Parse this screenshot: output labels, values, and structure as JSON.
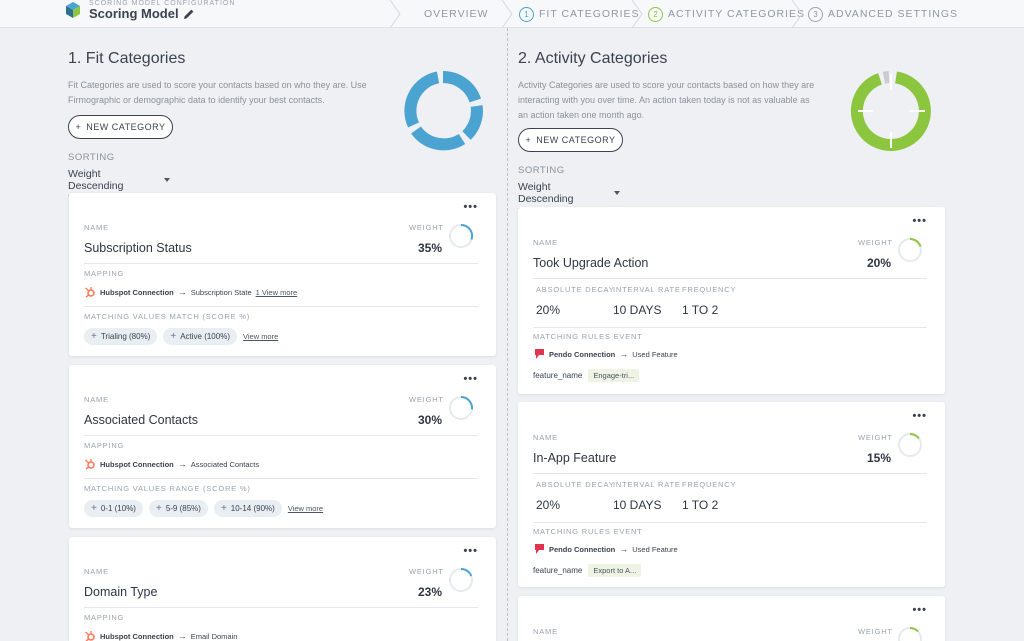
{
  "header": {
    "config_label": "SCORING MODEL CONFIGURATION",
    "model_title": "Scoring Model",
    "steps": [
      {
        "label": "OVERVIEW",
        "num": ""
      },
      {
        "label": "FIT CATEGORIES",
        "num": "1"
      },
      {
        "label": "ACTIVITY CATEGORIES",
        "num": "2"
      },
      {
        "label": "ADVANCED SETTINGS",
        "num": "3"
      }
    ]
  },
  "colors": {
    "fit_accent": "#4aa3d1",
    "activity_accent": "#8cc63f",
    "hubspot": "#ff7a59",
    "pendo": "#e0344f"
  },
  "fit": {
    "title": "1. Fit Categories",
    "description": "Fit Categories are used to score your contacts based on who they are. Use Firmographic or demographic data to identify your best contacts.",
    "new_button": "NEW CATEGORY",
    "sorting_label": "SORTING",
    "sorting_value": "Weight Descending",
    "cards": [
      {
        "name_label": "NAME",
        "name": "Subscription Status",
        "weight_label": "WEIGHT",
        "weight": "35%",
        "weight_value": 0.35,
        "mapping_label": "MAPPING",
        "connection": "Hubspot Connection",
        "field": "Subscription State",
        "view_more_mapping": "1 View more",
        "match_label": "MATCHING VALUES MATCH (SCORE %)",
        "chips": [
          "Trialing (80%)",
          "Active (100%)"
        ],
        "view_more": "View more"
      },
      {
        "name_label": "NAME",
        "name": "Associated Contacts",
        "weight_label": "WEIGHT",
        "weight": "30%",
        "weight_value": 0.3,
        "mapping_label": "MAPPING",
        "connection": "Hubspot Connection",
        "field": "Associated Contacts",
        "match_label": "MATCHING VALUES RANGE (SCORE %)",
        "chips": [
          "0-1 (10%)",
          "5-9 (85%)",
          "10-14 (90%)"
        ],
        "view_more": "View more"
      },
      {
        "name_label": "NAME",
        "name": "Domain Type",
        "weight_label": "WEIGHT",
        "weight": "23%",
        "weight_value": 0.23,
        "mapping_label": "MAPPING",
        "connection": "Hubspot Connection",
        "field": "Email Domain"
      }
    ]
  },
  "activity": {
    "title": "2. Activity Categories",
    "description": "Activity Categories are used to score your contacts based on how they are interacting with you over time. An action taken today is not as valuable as an action taken one month ago.",
    "new_button": "NEW CATEGORY",
    "sorting_label": "SORTING",
    "sorting_value": "Weight Descending",
    "cards": [
      {
        "name_label": "NAME",
        "name": "Took Upgrade Action",
        "weight_label": "WEIGHT",
        "weight": "20%",
        "weight_value": 0.2,
        "decay_label": "ABSOLUTE DECAY",
        "decay": "20%",
        "interval_label": "INTERVAL RATE",
        "interval": "10 DAYS",
        "freq_label": "FREQUENCY",
        "freq": "1 TO 2",
        "event_label": "MATCHING RULES EVENT",
        "connection": "Pendo Connection",
        "event": "Used Feature",
        "feature_key": "feature_name",
        "feature_val": "Engage-tri..."
      },
      {
        "name_label": "NAME",
        "name": "In-App Feature",
        "weight_label": "WEIGHT",
        "weight": "15%",
        "weight_value": 0.15,
        "decay_label": "ABSOLUTE DECAY",
        "decay": "20%",
        "interval_label": "INTERVAL RATE",
        "interval": "10 DAYS",
        "freq_label": "FREQUENCY",
        "freq": "1 TO 2",
        "event_label": "MATCHING RULES EVENT",
        "connection": "Pendo Connection",
        "event": "Used Feature",
        "feature_key": "feature_name",
        "feature_val": "Export to A..."
      },
      {
        "name_label": "NAME",
        "weight_label": "WEIGHT"
      }
    ]
  }
}
